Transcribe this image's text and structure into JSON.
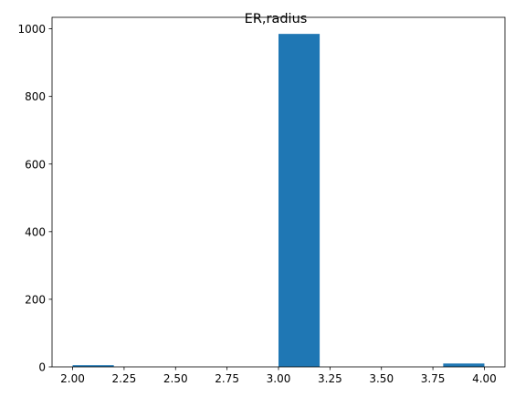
{
  "chart_data": {
    "type": "bar",
    "title": "ER,radius",
    "xlabel": "",
    "ylabel": "",
    "bins": [
      {
        "x0": 2.0,
        "x1": 2.2,
        "count": 5
      },
      {
        "x0": 2.2,
        "x1": 2.4,
        "count": 0
      },
      {
        "x0": 2.4,
        "x1": 2.6,
        "count": 0
      },
      {
        "x0": 2.6,
        "x1": 2.8,
        "count": 0
      },
      {
        "x0": 2.8,
        "x1": 3.0,
        "count": 0
      },
      {
        "x0": 3.0,
        "x1": 3.2,
        "count": 985
      },
      {
        "x0": 3.2,
        "x1": 3.4,
        "count": 0
      },
      {
        "x0": 3.4,
        "x1": 3.6,
        "count": 0
      },
      {
        "x0": 3.6,
        "x1": 3.8,
        "count": 0
      },
      {
        "x0": 3.8,
        "x1": 4.0,
        "count": 10
      }
    ],
    "xlim": [
      1.9,
      4.1
    ],
    "ylim": [
      0,
      1034
    ],
    "xticks": [
      2.0,
      2.25,
      2.5,
      2.75,
      3.0,
      3.25,
      3.5,
      3.75,
      4.0
    ],
    "xtick_labels": [
      "2.00",
      "2.25",
      "2.50",
      "2.75",
      "3.00",
      "3.25",
      "3.50",
      "3.75",
      "4.00"
    ],
    "yticks": [
      0,
      200,
      400,
      600,
      800,
      1000
    ],
    "ytick_labels": [
      "0",
      "200",
      "400",
      "600",
      "800",
      "1000"
    ],
    "bar_color": "#1f77b4",
    "grid": false
  }
}
